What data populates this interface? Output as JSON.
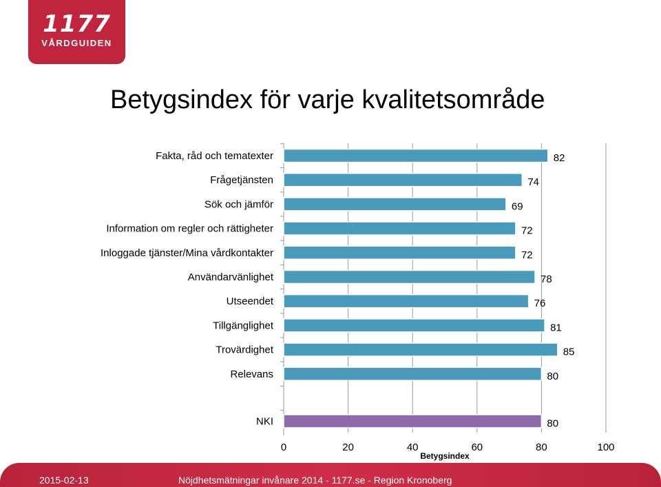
{
  "logo": {
    "number": "1177",
    "name": "VÅRDGUIDEN"
  },
  "title": "Betygsindex för varje kvalitetsområde",
  "chart_data": {
    "type": "bar",
    "orientation": "horizontal",
    "categories": [
      "Fakta, råd och tematexter",
      "Frågetjänsten",
      "Sök och jämför",
      "Information om regler och rättigheter",
      "Inloggade tjänster/Mina vårdkontakter",
      "Användarvänlighet",
      "Utseendet",
      "Tillgänglighet",
      "Trovärdighet",
      "Relevans"
    ],
    "values": [
      82,
      74,
      69,
      72,
      72,
      78,
      76,
      81,
      85,
      80
    ],
    "summary": {
      "category": "NKI",
      "value": 80
    },
    "xlabel": "Betygsindex",
    "xlim": [
      0,
      100
    ],
    "xticks": [
      0,
      20,
      40,
      60,
      80,
      100
    ],
    "grid": true,
    "colors": {
      "bar": "#4a9bbb",
      "summary_bar": "#8e6aa8",
      "bar_border": "#ffffff",
      "grid": "#999999"
    }
  },
  "footer": {
    "date": "2015-02-13",
    "text": "Nöjdhetsmätningar invånare 2014 - 1177.se - Region Kronoberg"
  }
}
